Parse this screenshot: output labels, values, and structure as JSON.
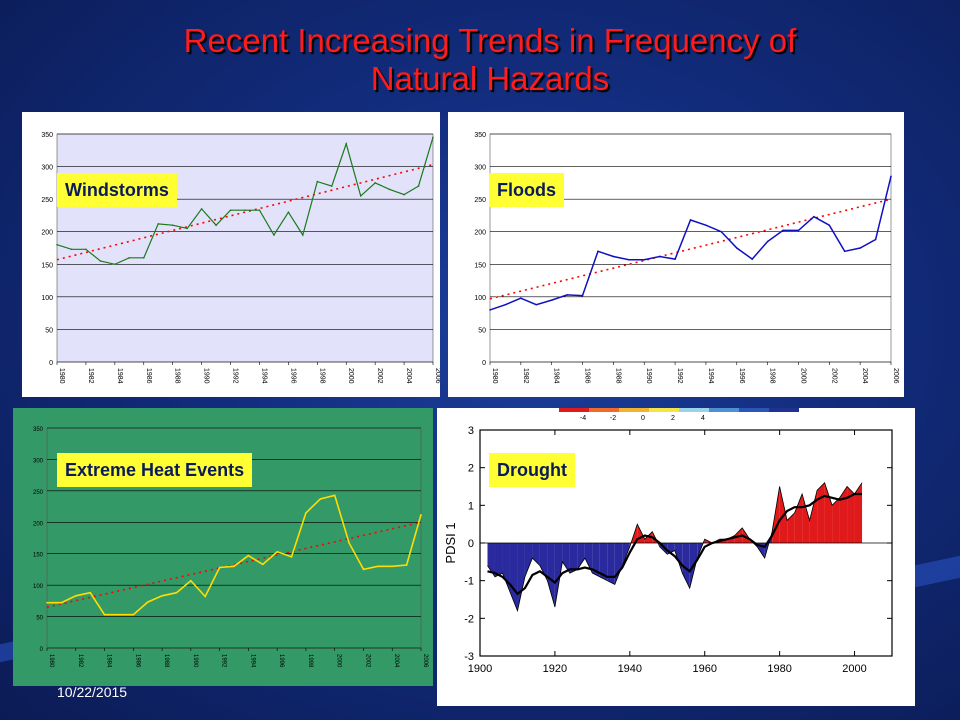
{
  "slide": {
    "title_line1": "Recent Increasing Trends in Frequency of",
    "title_line2": "Natural Hazards",
    "date": "10/22/2015"
  },
  "colors": {
    "title": "#ff1c1c",
    "tag_bg": "#ffff33",
    "trend": "#ff0000",
    "windstorms_bg": "#e2e2fa",
    "windstorms_line": "#1a7a1a",
    "floods_line": "#1010c0",
    "heat_bg": "#339966",
    "heat_line": "#ffdd00",
    "drought_pos": "#e01a1a",
    "drought_neg": "#2a2a9e"
  },
  "chart_data": [
    {
      "id": "windstorms",
      "type": "line",
      "label": "Windstorms",
      "x": [
        1980,
        1981,
        1982,
        1983,
        1984,
        1985,
        1986,
        1987,
        1988,
        1989,
        1990,
        1991,
        1992,
        1993,
        1994,
        1995,
        1996,
        1997,
        1998,
        1999,
        2000,
        2001,
        2002,
        2003,
        2004,
        2005,
        2006
      ],
      "values": [
        180,
        173,
        173,
        155,
        150,
        160,
        160,
        212,
        210,
        205,
        235,
        210,
        233,
        233,
        233,
        195,
        230,
        195,
        277,
        270,
        335,
        255,
        275,
        265,
        257,
        270,
        345
      ],
      "trend": [
        157,
        303
      ],
      "ylim": [
        0,
        350
      ],
      "yticks": [
        0,
        50,
        100,
        150,
        200,
        250,
        300,
        350
      ],
      "xticks": [
        "1980",
        "1982",
        "1984",
        "1986",
        "1988",
        "1990",
        "1992",
        "1994",
        "1996",
        "1998",
        "2000",
        "2002",
        "2004",
        "2006"
      ]
    },
    {
      "id": "floods",
      "type": "line",
      "label": "Floods",
      "x": [
        1980,
        1981,
        1982,
        1983,
        1984,
        1985,
        1986,
        1987,
        1988,
        1989,
        1990,
        1991,
        1992,
        1993,
        1994,
        1995,
        1996,
        1997,
        1998,
        1999,
        2000,
        2001,
        2002,
        2003,
        2004,
        2005,
        2006
      ],
      "values": [
        80,
        88,
        98,
        88,
        95,
        103,
        102,
        170,
        162,
        157,
        157,
        162,
        158,
        218,
        210,
        200,
        175,
        158,
        185,
        202,
        202,
        223,
        210,
        170,
        175,
        188,
        285
      ],
      "trend": [
        97,
        250
      ],
      "ylim": [
        0,
        350
      ],
      "yticks": [
        0,
        50,
        100,
        150,
        200,
        250,
        300,
        350
      ],
      "xticks": [
        "1980",
        "1982",
        "1984",
        "1986",
        "1988",
        "1990",
        "1992",
        "1994",
        "1996",
        "1998",
        "2000",
        "2002",
        "2004",
        "2006"
      ]
    },
    {
      "id": "heat",
      "type": "line",
      "label": "Extreme Heat Events",
      "x": [
        1980,
        1981,
        1982,
        1983,
        1984,
        1985,
        1986,
        1987,
        1988,
        1989,
        1990,
        1991,
        1992,
        1993,
        1994,
        1995,
        1996,
        1997,
        1998,
        1999,
        2000,
        2001,
        2002,
        2003,
        2004,
        2005,
        2006
      ],
      "values": [
        72,
        72,
        83,
        88,
        53,
        53,
        53,
        73,
        83,
        88,
        107,
        82,
        128,
        130,
        147,
        133,
        153,
        145,
        215,
        237,
        243,
        167,
        125,
        130,
        130,
        132,
        212
      ],
      "trend": [
        65,
        200
      ],
      "ylim": [
        0,
        350
      ],
      "yticks": [
        0,
        50,
        100,
        150,
        200,
        250,
        300,
        350
      ],
      "xticks": [
        "1980",
        "1982",
        "1984",
        "1986",
        "1988",
        "1990",
        "1992",
        "1994",
        "1996",
        "1998",
        "2000",
        "2002",
        "2004",
        "2006"
      ]
    },
    {
      "id": "drought",
      "type": "area",
      "label": "Drought",
      "ylabel": "PDSI 1",
      "xlim": [
        1900,
        2010
      ],
      "ylim": [
        -3,
        3
      ],
      "xticks": [
        1900,
        1920,
        1940,
        1960,
        1980,
        2000
      ],
      "yticks": [
        -3,
        -2,
        -1,
        0,
        1,
        2,
        3
      ],
      "x": [
        1902,
        1904,
        1906,
        1908,
        1910,
        1912,
        1914,
        1916,
        1918,
        1920,
        1922,
        1924,
        1926,
        1928,
        1930,
        1932,
        1934,
        1936,
        1938,
        1940,
        1942,
        1944,
        1946,
        1948,
        1950,
        1952,
        1954,
        1956,
        1958,
        1960,
        1962,
        1964,
        1966,
        1968,
        1970,
        1972,
        1974,
        1976,
        1978,
        1980,
        1982,
        1984,
        1986,
        1988,
        1990,
        1992,
        1994,
        1996,
        1998,
        2000,
        2002
      ],
      "values": [
        -0.6,
        -0.9,
        -0.8,
        -1.3,
        -1.8,
        -0.9,
        -0.4,
        -0.6,
        -1.0,
        -1.7,
        -0.5,
        -0.8,
        -0.7,
        -0.4,
        -0.8,
        -0.9,
        -1.0,
        -1.1,
        -0.6,
        -0.1,
        0.5,
        0.1,
        0.3,
        -0.1,
        -0.3,
        -0.2,
        -0.8,
        -1.2,
        -0.4,
        0.1,
        0.0,
        0.1,
        0.1,
        0.2,
        0.4,
        0.1,
        -0.1,
        -0.4,
        0.3,
        1.5,
        0.6,
        0.8,
        1.3,
        0.6,
        1.4,
        1.6,
        1.0,
        1.2,
        1.5,
        1.3,
        1.6
      ],
      "smooth": [
        -0.75,
        -0.8,
        -0.9,
        -1.1,
        -1.35,
        -1.2,
        -0.85,
        -0.75,
        -0.9,
        -1.05,
        -0.8,
        -0.7,
        -0.7,
        -0.65,
        -0.7,
        -0.8,
        -0.9,
        -0.9,
        -0.65,
        -0.25,
        0.1,
        0.2,
        0.15,
        0.0,
        -0.2,
        -0.35,
        -0.6,
        -0.75,
        -0.45,
        -0.1,
        0.0,
        0.05,
        0.1,
        0.15,
        0.2,
        0.1,
        -0.05,
        -0.1,
        0.2,
        0.6,
        0.85,
        0.95,
        0.95,
        1.0,
        1.15,
        1.25,
        1.2,
        1.15,
        1.2,
        1.3,
        1.3
      ],
      "colorbar_ticks": [
        "-4",
        "-2",
        "0",
        "2",
        "4"
      ]
    }
  ]
}
